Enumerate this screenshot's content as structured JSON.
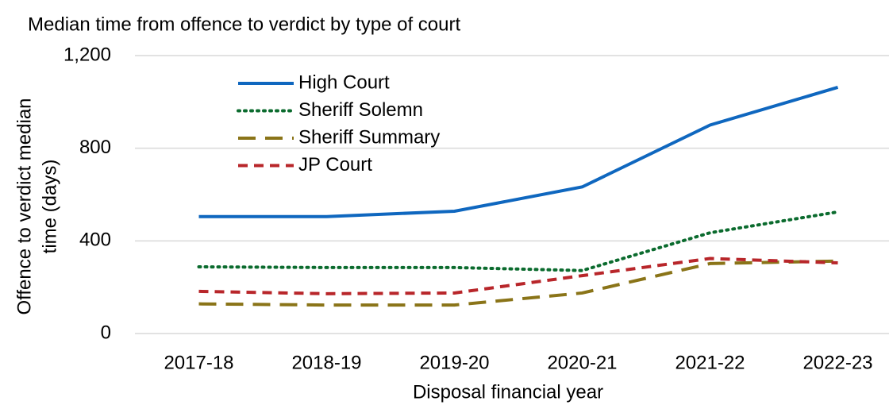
{
  "chart_data": {
    "type": "line",
    "title": "Median time from offence to verdict by type of court",
    "x_label": "Disposal financial year",
    "y_label": [
      "Offence to verdict median",
      "time (days)"
    ],
    "categories": [
      "2017-18",
      "2018-19",
      "2019-20",
      "2020-21",
      "2021-22",
      "2022-23"
    ],
    "series": [
      {
        "name": "High Court",
        "color": "#0f67bf",
        "dash": "solid",
        "values": [
          505,
          505,
          528,
          633,
          900,
          1063
        ]
      },
      {
        "name": "Sheriff Solemn",
        "color": "#0b6b2e",
        "dash": "dotted",
        "values": [
          288,
          285,
          285,
          272,
          435,
          525
        ]
      },
      {
        "name": "Sheriff Summary",
        "color": "#8a7418",
        "dash": "long-dash",
        "values": [
          128,
          123,
          123,
          175,
          302,
          313
        ]
      },
      {
        "name": "JP Court",
        "color": "#b8262a",
        "dash": "short-dash",
        "values": [
          182,
          172,
          175,
          250,
          324,
          305
        ]
      }
    ],
    "ylim": [
      0,
      1200
    ],
    "yticks": [
      0,
      400,
      800,
      {
        "value": 1200,
        "label": "1,200"
      }
    ],
    "grid": true,
    "legend": "top-left"
  }
}
